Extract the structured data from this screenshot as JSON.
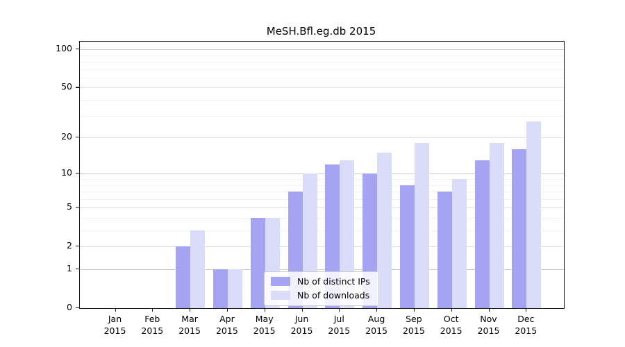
{
  "chart_data": {
    "type": "bar",
    "title": "MeSH.Bfl.eg.db 2015",
    "year": "2015",
    "months": [
      "Jan",
      "Feb",
      "Mar",
      "Apr",
      "May",
      "Jun",
      "Jul",
      "Aug",
      "Sep",
      "Oct",
      "Nov",
      "Dec"
    ],
    "categories": [
      "Jan 2015",
      "Feb 2015",
      "Mar 2015",
      "Apr 2015",
      "May 2015",
      "Jun 2015",
      "Jul 2015",
      "Aug 2015",
      "Sep 2015",
      "Oct 2015",
      "Nov 2015",
      "Dec 2015"
    ],
    "series": [
      {
        "name": "Nb of distinct IPs",
        "color": "#a4a4f3",
        "values": [
          0,
          0,
          2,
          1,
          4,
          7,
          12,
          10,
          8,
          7,
          13,
          16
        ]
      },
      {
        "name": "Nb of downloads",
        "color": "#dbdcf9",
        "values": [
          0,
          0,
          3,
          1,
          4,
          10,
          13,
          15,
          18,
          9,
          18,
          27
        ]
      }
    ],
    "xlabel": "",
    "ylabel": "",
    "yscale": "log1p",
    "ylim": [
      0,
      115
    ],
    "yticks": [
      0,
      1,
      2,
      5,
      10,
      20,
      50,
      100
    ],
    "minor_yticks": [
      3,
      4,
      6,
      7,
      8,
      9,
      30,
      40,
      60,
      70,
      80,
      90
    ],
    "grid": "on",
    "legend_position": "lower-center-inside"
  }
}
